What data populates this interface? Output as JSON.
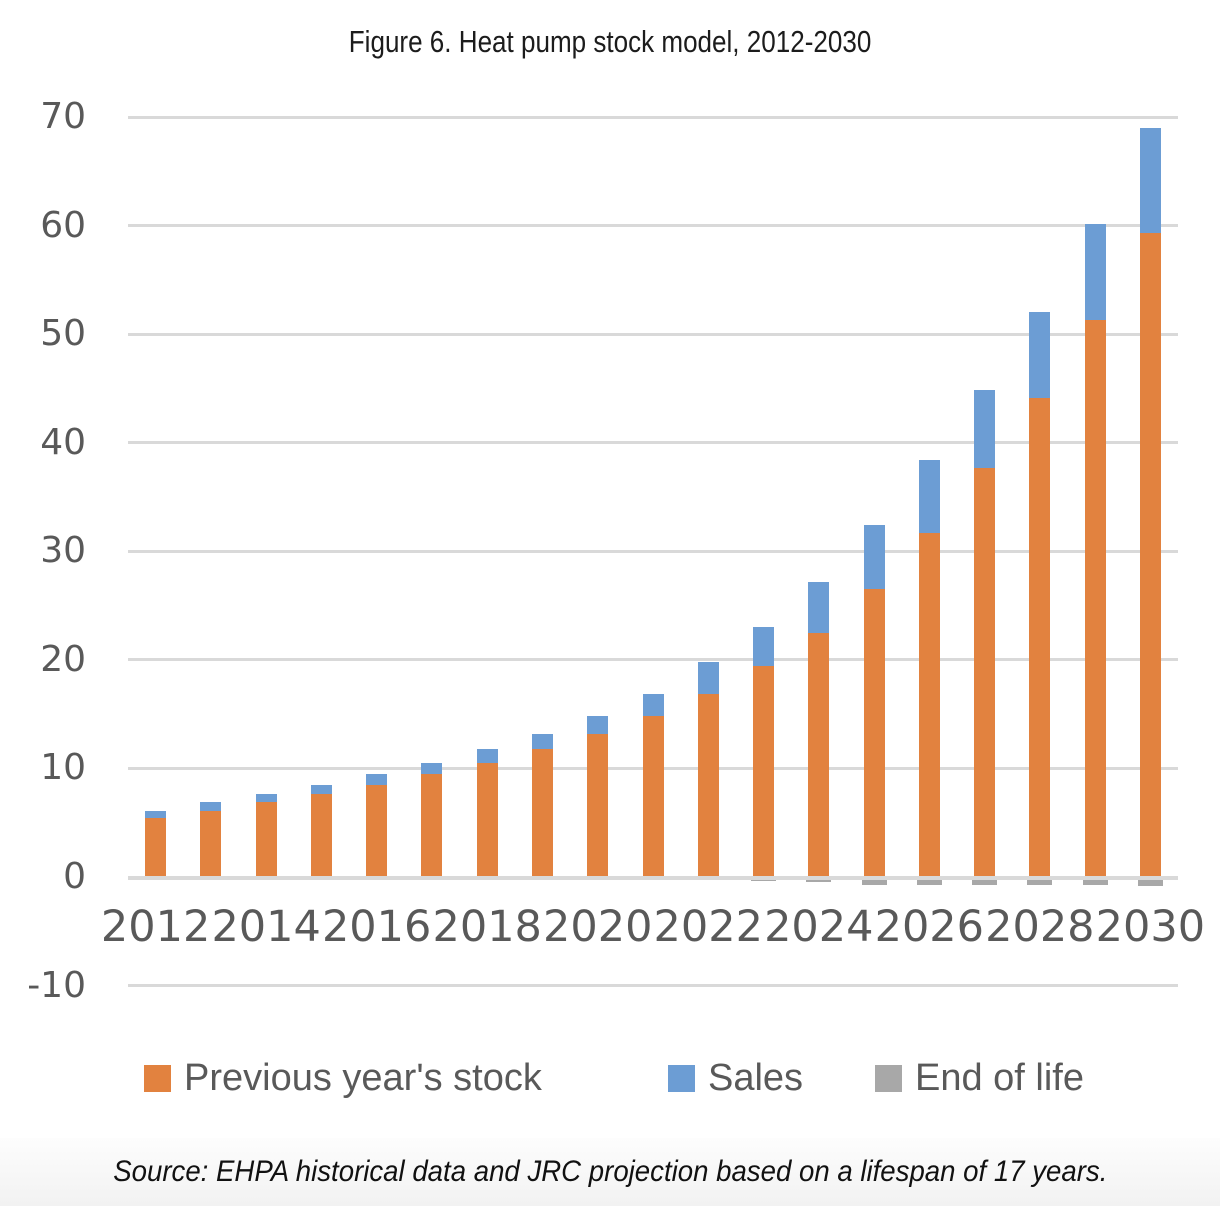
{
  "figure": {
    "title": "Figure 6. Heat pump stock model, 2012-2030",
    "source": "Source: EHPA historical data and JRC projection based on a lifespan of 17 years."
  },
  "colors": {
    "previous_stock": "#E2823F",
    "sales": "#6C9DD4",
    "end_of_life": "#A8A8A8",
    "gridline": "#D9D9D9",
    "axis_text": "#595959"
  },
  "legend": {
    "items": [
      {
        "id": "previous_stock",
        "label": "Previous year's stock",
        "swatch_color": "#E2823F"
      },
      {
        "id": "sales",
        "label": "Sales",
        "swatch_color": "#6C9DD4"
      },
      {
        "id": "end_of_life",
        "label": "End of life",
        "swatch_color": "#A8A8A8"
      }
    ]
  },
  "chart_data": {
    "type": "bar",
    "stacked": true,
    "title": "Figure 6. Heat pump stock model, 2012-2030",
    "xlabel": "",
    "ylabel": "",
    "categories": [
      2012,
      2013,
      2014,
      2015,
      2016,
      2017,
      2018,
      2019,
      2020,
      2021,
      2022,
      2023,
      2024,
      2025,
      2026,
      2027,
      2028,
      2029,
      2030
    ],
    "x_tick_labels": [
      "2012",
      "2014",
      "2016",
      "2018",
      "2020",
      "2022",
      "2024",
      "2026",
      "2028",
      "2030"
    ],
    "series": [
      {
        "name": "Previous year's stock",
        "color": "#E2823F",
        "values": [
          5.4,
          6.1,
          6.9,
          7.6,
          8.5,
          9.5,
          10.5,
          11.8,
          13.2,
          14.8,
          16.9,
          19.4,
          22.5,
          26.5,
          31.7,
          37.7,
          44.1,
          51.3,
          59.3
        ]
      },
      {
        "name": "Sales",
        "color": "#6C9DD4",
        "values": [
          0.7,
          0.8,
          0.7,
          0.9,
          1.0,
          1.0,
          1.3,
          1.4,
          1.6,
          2.1,
          2.9,
          3.6,
          4.7,
          5.9,
          6.7,
          7.2,
          7.9,
          8.8,
          9.7
        ]
      },
      {
        "name": "End of life",
        "color": "#A8A8A8",
        "values": [
          0,
          0,
          0,
          0,
          0,
          0,
          0,
          0,
          0,
          0,
          0,
          -0.4,
          -0.5,
          -0.7,
          -0.7,
          -0.7,
          -0.7,
          -0.7,
          -0.8
        ]
      }
    ],
    "totals": [
      6.1,
      6.9,
      7.6,
      8.5,
      9.5,
      10.5,
      11.8,
      13.2,
      14.8,
      16.9,
      19.8,
      23.0,
      27.2,
      32.4,
      38.4,
      44.9,
      52.0,
      60.1,
      69.0
    ],
    "ylim": [
      -10,
      70
    ],
    "y_ticks": [
      70,
      60,
      50,
      40,
      30,
      20,
      10,
      0,
      -10
    ],
    "grid": true,
    "legend_position": "bottom"
  }
}
